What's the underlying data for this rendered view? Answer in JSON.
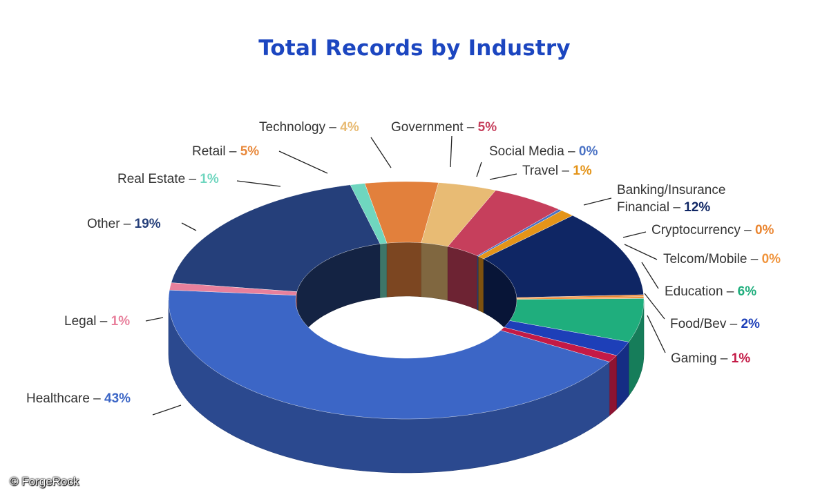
{
  "title": "Total Records by Industry",
  "credit": "© ForgeRock",
  "chart_data": {
    "type": "pie",
    "style": "3d-donut",
    "title": "Total Records by Industry",
    "unit": "%",
    "slices": [
      {
        "label": "Other",
        "value": 19,
        "color": "#253f7a",
        "label_color": "#253f7a"
      },
      {
        "label": "Real Estate",
        "value": 1,
        "color": "#6fd6bf",
        "label_color": "#6fd6bf"
      },
      {
        "label": "Retail",
        "value": 5,
        "color": "#e2803c",
        "label_color": "#e8893c"
      },
      {
        "label": "Technology",
        "value": 4,
        "color": "#e8bb74",
        "label_color": "#e8bb74"
      },
      {
        "label": "Government",
        "value": 5,
        "color": "#c63f5c",
        "label_color": "#c63f5c"
      },
      {
        "label": "Social Media",
        "value": 0,
        "color": "#4a72c4",
        "label_color": "#4a72c4"
      },
      {
        "label": "Travel",
        "value": 1,
        "color": "#e49419",
        "label_color": "#e49419"
      },
      {
        "label": "Banking/Insurance\nFinancial",
        "value": 12,
        "color": "#0f2664",
        "label_color": "#0f2664"
      },
      {
        "label": "Cryptocurrency",
        "value": 0,
        "color": "#ea8530",
        "label_color": "#ea8530"
      },
      {
        "label": "Telcom/Mobile",
        "value": 0,
        "color": "#f0943c",
        "label_color": "#f0943c"
      },
      {
        "label": "Education",
        "value": 6,
        "color": "#1fae7d",
        "label_color": "#1fae7d"
      },
      {
        "label": "Food/Bev",
        "value": 2,
        "color": "#1d3fb8",
        "label_color": "#1d3fb8"
      },
      {
        "label": "Gaming",
        "value": 1,
        "color": "#c41a46",
        "label_color": "#c41a46"
      },
      {
        "label": "Healthcare",
        "value": 43,
        "color": "#3c66c6",
        "label_color": "#3c66c6"
      },
      {
        "label": "Legal",
        "value": 1,
        "color": "#e8809c",
        "label_color": "#e8809c"
      }
    ],
    "legend": "none"
  }
}
